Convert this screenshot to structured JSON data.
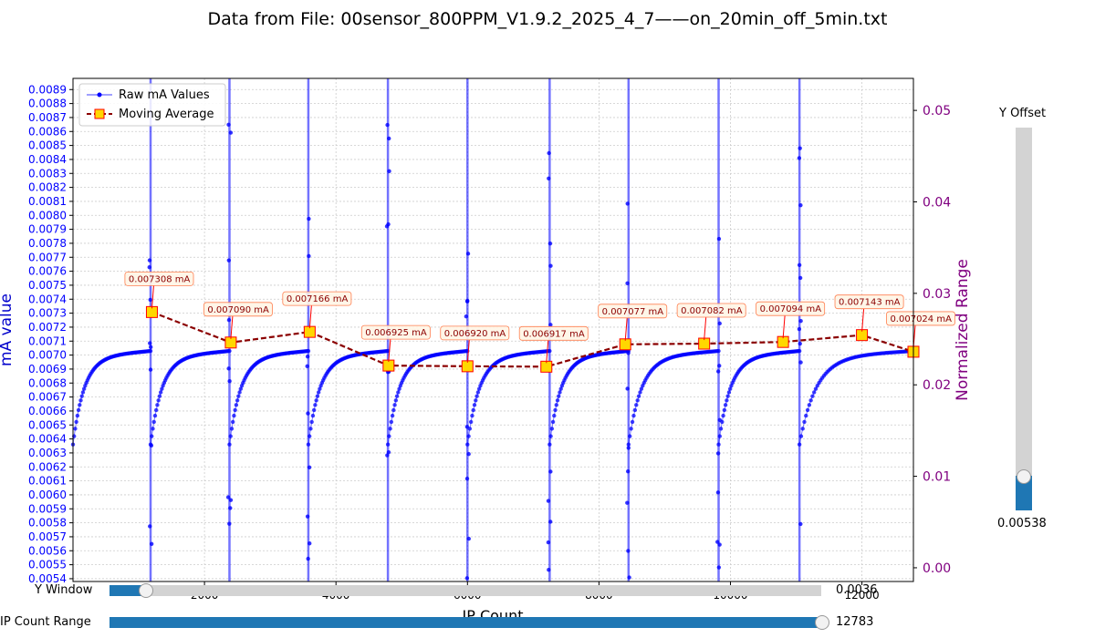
{
  "title": "Data from File: 00sensor_800PPM_V1.9.2_2025_4_7——on_20min_off_5min.txt",
  "controls": {
    "y_window_label": "Y Window",
    "y_window_value": "0.0036",
    "y_window_fraction": 0.05,
    "ip_range_label": "IP Count Range",
    "ip_range_value": "12783",
    "ip_range_fraction": 1.0,
    "y_offset_label": "Y Offset",
    "y_offset_value": "0.00538",
    "y_offset_fraction": 0.09
  },
  "colors": {
    "raw": "#0000ff",
    "avg_line": "#8b0000",
    "avg_marker_fill": "#ffd700",
    "avg_marker_edge": "#ff0000",
    "right_axis": "#800080",
    "slider_fill": "#1f77b4",
    "grid": "#cccccc"
  },
  "chart_data": {
    "type": "scatter",
    "xlabel": "IP Count",
    "ylabel": "mA value",
    "y2label": "Normalized Range",
    "xlim": [
      0,
      12783
    ],
    "ylim": [
      0.00538,
      0.00898
    ],
    "y2lim": [
      -0.0015,
      0.0535
    ],
    "x_ticks": [
      "2000",
      "4000",
      "6000",
      "8000",
      "10000",
      "12000"
    ],
    "x_tick_values": [
      2000,
      4000,
      6000,
      8000,
      10000,
      12000
    ],
    "y_ticks": [
      "0.0054",
      "0.0055",
      "0.0056",
      "0.0057",
      "0.0058",
      "0.0059",
      "0.0060",
      "0.0061",
      "0.0062",
      "0.0063",
      "0.0064",
      "0.0065",
      "0.0066",
      "0.0067",
      "0.0068",
      "0.0069",
      "0.0070",
      "0.0071",
      "0.0072",
      "0.0073",
      "0.0074",
      "0.0075",
      "0.0076",
      "0.0077",
      "0.0078",
      "0.0079",
      "0.0080",
      "0.0081",
      "0.0082",
      "0.0083",
      "0.0084",
      "0.0085",
      "0.0086",
      "0.0087",
      "0.0088",
      "0.0089"
    ],
    "y2_ticks": [
      "0.00",
      "0.01",
      "0.02",
      "0.03",
      "0.04",
      "0.05"
    ],
    "y2_tick_values": [
      0.0,
      0.01,
      0.02,
      0.03,
      0.04,
      0.05
    ],
    "grid": true,
    "legend_position": "top-left",
    "legend": [
      "Raw mA Values",
      "Moving Average"
    ],
    "raw_series": {
      "name": "Raw mA Values",
      "cycles": [
        {
          "start": 0,
          "end": 1180
        },
        {
          "start": 1180,
          "end": 2380
        },
        {
          "start": 2380,
          "end": 3580
        },
        {
          "start": 3580,
          "end": 4790
        },
        {
          "start": 4790,
          "end": 6000
        },
        {
          "start": 6000,
          "end": 7250
        },
        {
          "start": 7250,
          "end": 8450
        },
        {
          "start": 8450,
          "end": 9820
        },
        {
          "start": 9820,
          "end": 11050
        },
        {
          "start": 11050,
          "end": 12783
        }
      ],
      "low": 0.00636,
      "high": 0.00703,
      "spikes_x": [
        1180,
        2380,
        3580,
        4790,
        6000,
        7250,
        8450,
        9820,
        11050
      ]
    },
    "moving_average": {
      "name": "Moving Average",
      "x": [
        1200,
        2400,
        3600,
        4800,
        6000,
        7200,
        8400,
        9600,
        10800,
        12000,
        12783
      ],
      "y": [
        0.007308,
        0.00709,
        0.007166,
        0.006925,
        0.00692,
        0.006917,
        0.007077,
        0.007082,
        0.007094,
        0.007143,
        0.007024
      ],
      "labels": [
        "0.007308 mA",
        "0.007090 mA",
        "0.007166 mA",
        "0.006925 mA",
        "0.006920 mA",
        "0.006917 mA",
        "0.007077 mA",
        "0.007082 mA",
        "0.007094 mA",
        "0.007143 mA",
        "0.007024 mA"
      ]
    }
  }
}
